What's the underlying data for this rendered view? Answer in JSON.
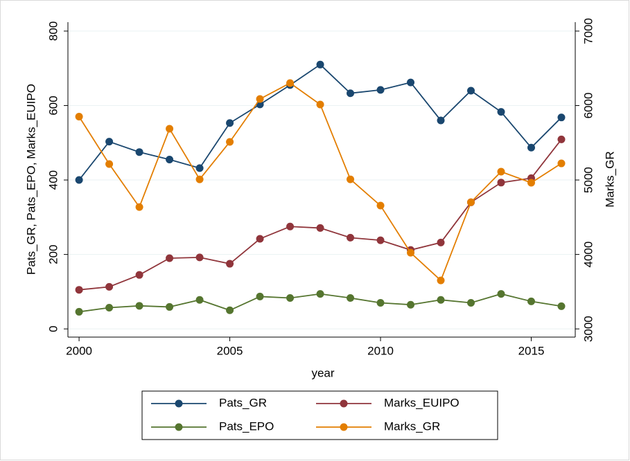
{
  "chart_data": {
    "type": "line",
    "xlabel": "year",
    "ylabel": "Pats_GR, Pats_EPO, Marks_EUIPO",
    "y2label": "Marks_GR",
    "x": [
      2000,
      2001,
      2002,
      2003,
      2004,
      2005,
      2006,
      2007,
      2008,
      2009,
      2010,
      2011,
      2012,
      2013,
      2014,
      2015,
      2016
    ],
    "xlim": [
      1999.63,
      2016.46
    ],
    "xticks": [
      2000,
      2005,
      2010,
      2015
    ],
    "ylim": [
      -22,
      824
    ],
    "yticks": [
      0,
      200,
      400,
      600,
      800
    ],
    "y2lim": [
      2890,
      7120
    ],
    "y2ticks": [
      3000,
      4000,
      5000,
      6000,
      7000
    ],
    "grid": true,
    "series": [
      {
        "name": "Pats_GR",
        "color": "#1a476f",
        "values": [
          400,
          503,
          475,
          455,
          432,
          553,
          603,
          655,
          710,
          633,
          642,
          662,
          560,
          640,
          583,
          487,
          568
        ]
      },
      {
        "name": "Marks_EUIPO",
        "color": "#90353b",
        "values": [
          105,
          113,
          145,
          190,
          192,
          175,
          242,
          275,
          271,
          245,
          238,
          212,
          232,
          340,
          393,
          405,
          509
        ]
      },
      {
        "name": "Pats_EPO",
        "color": "#55752f",
        "values": [
          46,
          57,
          62,
          59,
          78,
          50,
          87,
          83,
          94,
          83,
          70,
          65,
          78,
          70,
          94,
          74,
          61
        ]
      },
      {
        "name": "Marks_GR",
        "color": "#e37e00",
        "axis": "y2",
        "values": [
          5851,
          5214,
          4637,
          5688,
          5009,
          5512,
          6088,
          6302,
          6014,
          5009,
          4656,
          4023,
          3651,
          4702,
          5112,
          4963,
          5223
        ]
      }
    ]
  }
}
